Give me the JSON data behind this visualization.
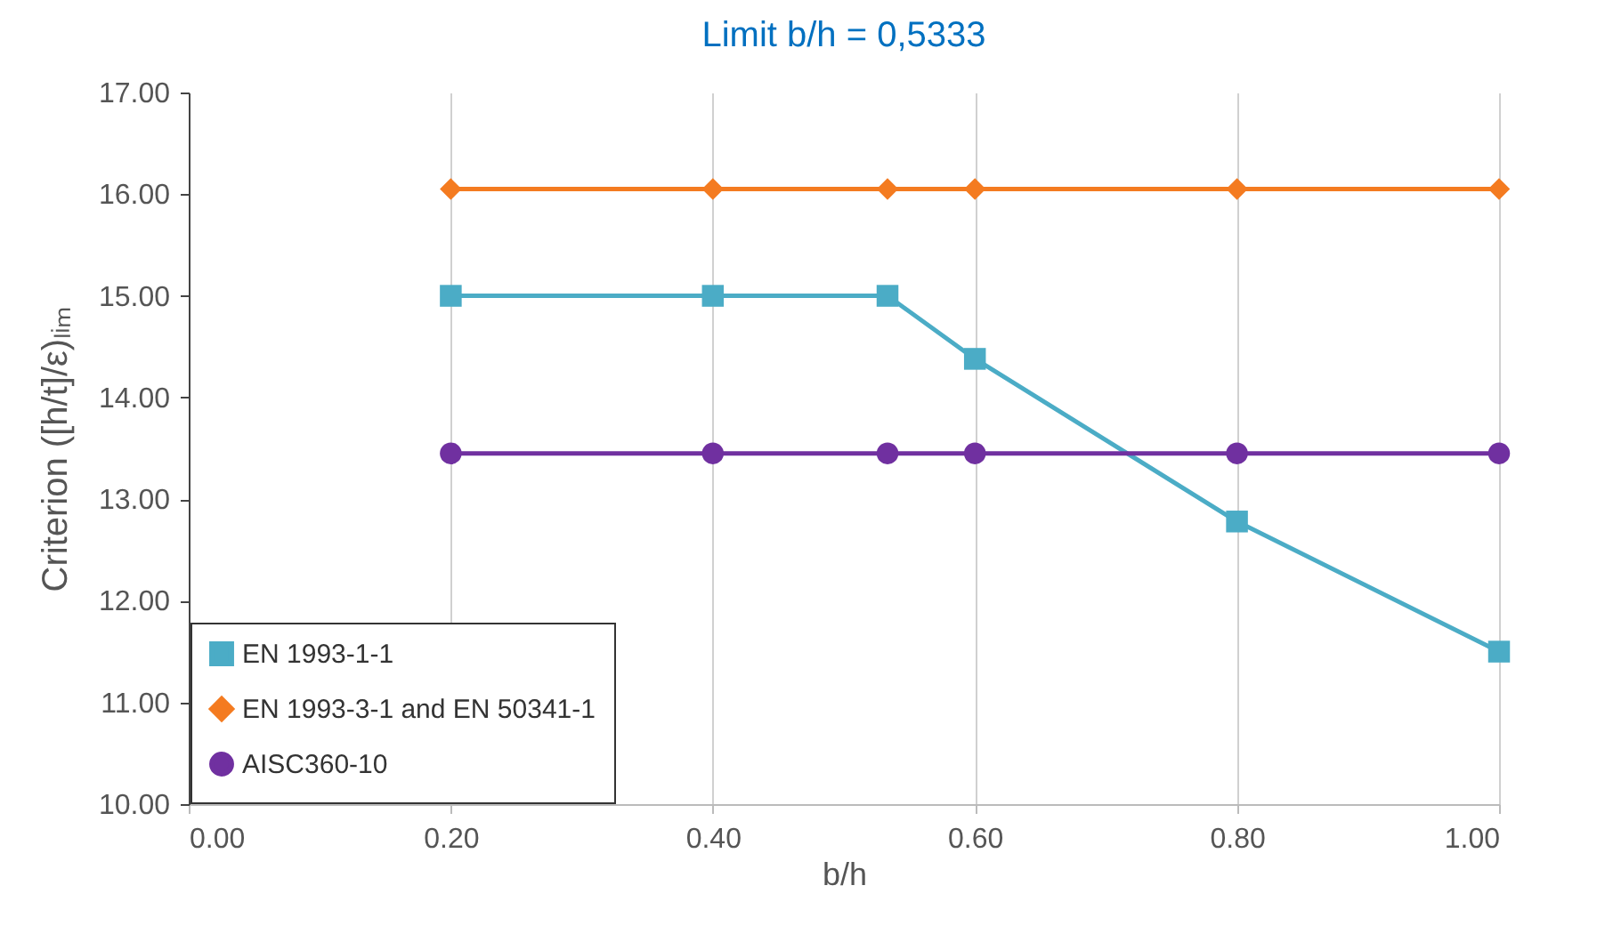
{
  "chart_data": {
    "type": "line",
    "title": "Limit b/h = 0,5333",
    "xlabel": "b/h",
    "ylabel": "Criterion ([h/t]/ε)ₗᵢₘ",
    "x": [
      0.2,
      0.4,
      0.5333,
      0.6,
      0.8,
      1.0
    ],
    "series": [
      {
        "name": "EN 1993-1-1",
        "color": "#4bacc6",
        "marker": "square",
        "values": [
          15.0,
          15.0,
          15.0,
          14.38,
          12.78,
          11.5
        ]
      },
      {
        "name": "EN 1993-3-1 and EN 50341-1",
        "color": "#f47b20",
        "marker": "diamond",
        "values": [
          16.05,
          16.05,
          16.05,
          16.05,
          16.05,
          16.05
        ]
      },
      {
        "name": "AISC360-10",
        "color": "#7030a0",
        "marker": "circle",
        "values": [
          13.45,
          13.45,
          13.45,
          13.45,
          13.45,
          13.45
        ]
      }
    ],
    "xlim": [
      0,
      1
    ],
    "ylim": [
      10,
      17
    ],
    "xticks": [
      {
        "value": 0,
        "label": "0.00"
      },
      {
        "value": 0.2,
        "label": "0.20"
      },
      {
        "value": 0.4,
        "label": "0.40"
      },
      {
        "value": 0.6,
        "label": "0.60"
      },
      {
        "value": 0.8,
        "label": "0.80"
      },
      {
        "value": 1,
        "label": "1.00"
      }
    ],
    "yticks": [
      {
        "value": 10,
        "label": "10.00"
      },
      {
        "value": 11,
        "label": "11.00"
      },
      {
        "value": 12,
        "label": "12.00"
      },
      {
        "value": 13,
        "label": "13.00"
      },
      {
        "value": 14,
        "label": "14.00"
      },
      {
        "value": 15,
        "label": "15.00"
      },
      {
        "value": 16,
        "label": "16.00"
      },
      {
        "value": 17,
        "label": "17.00"
      }
    ],
    "grid": "x",
    "legend": "bottom left",
    "line_style": "solid"
  }
}
